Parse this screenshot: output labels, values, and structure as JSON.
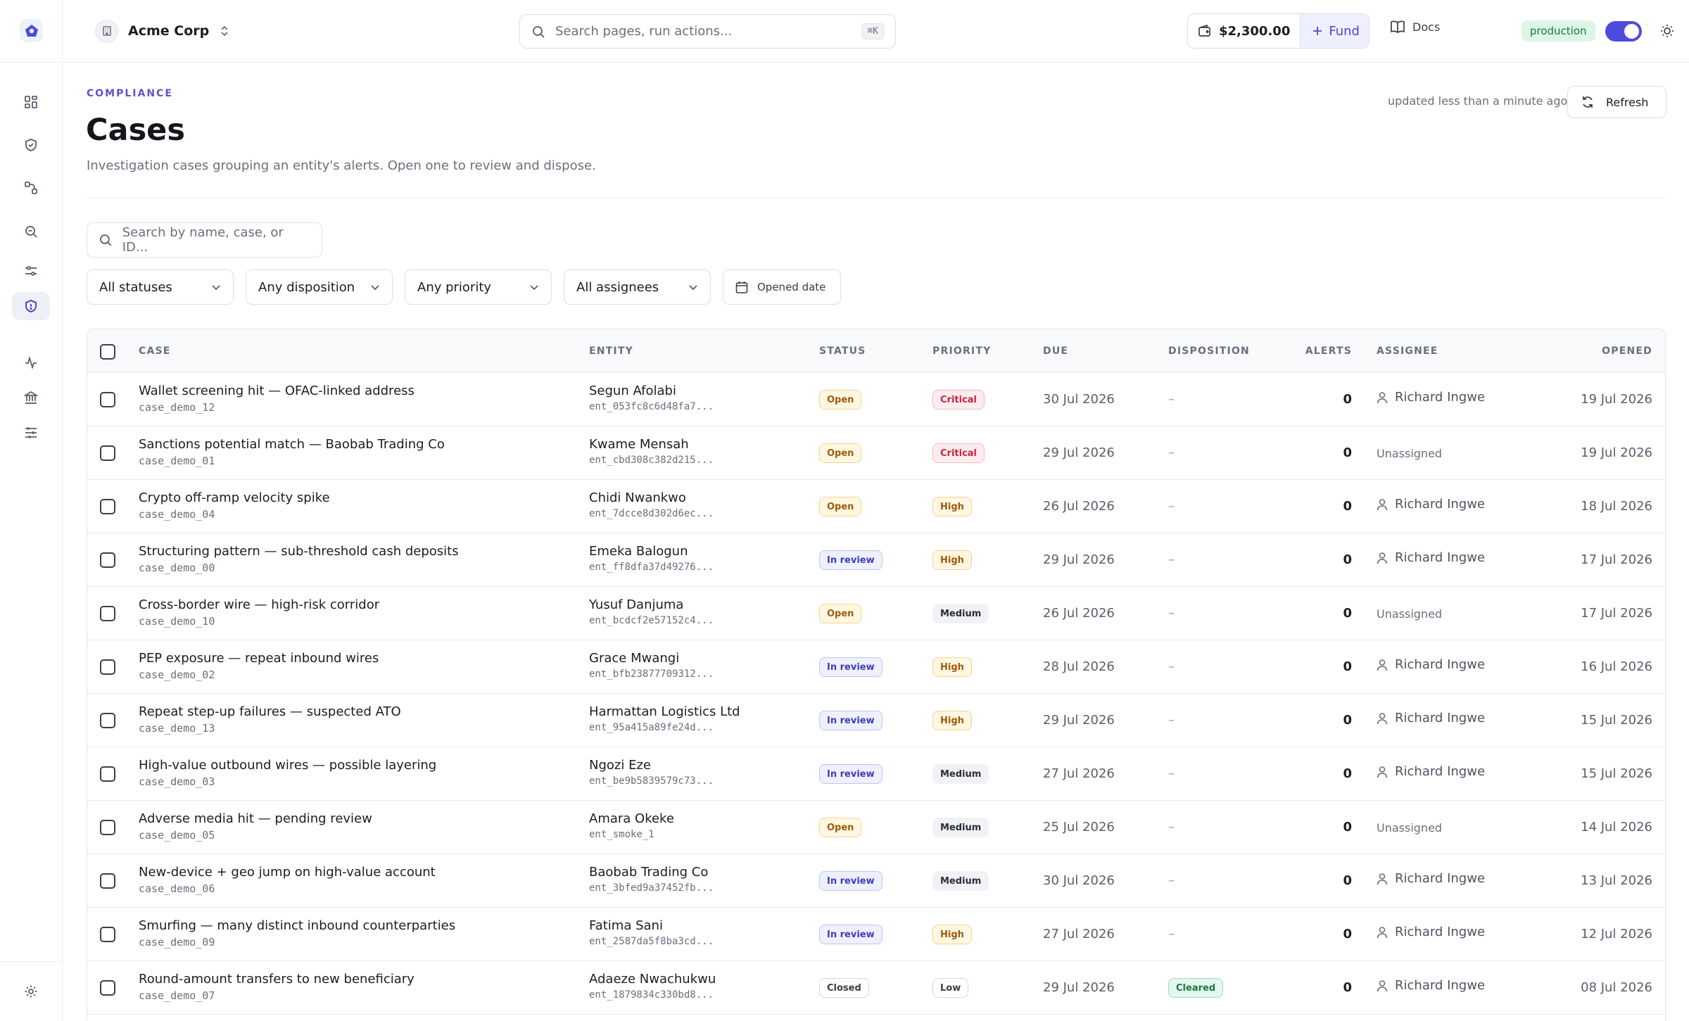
{
  "org": {
    "name": "Acme Corp"
  },
  "command": {
    "placeholder": "Search pages, run actions...",
    "shortcut": "⌘K"
  },
  "wallet": {
    "balance": "$2,300.00",
    "fund_label": "Fund"
  },
  "docs_label": "Docs",
  "environment": {
    "label": "production",
    "enabled": true
  },
  "colors": {
    "accent": "#4d4bdc",
    "env_bg": "#dcf5e6",
    "env_text": "#137a45"
  },
  "nav": {
    "items": [
      {
        "icon": "dashboard-icon"
      },
      {
        "icon": "shield-check-icon"
      },
      {
        "icon": "flow-icon"
      },
      {
        "icon": "search-investigate-icon"
      },
      {
        "icon": "rules-icon"
      },
      {
        "icon": "shield-cases-icon",
        "active": true
      },
      {
        "icon": "activity-icon"
      },
      {
        "icon": "bank-icon"
      },
      {
        "icon": "sliders-icon"
      }
    ],
    "footer_icon": "settings-icon"
  },
  "page": {
    "eyebrow": "COMPLIANCE",
    "title": "Cases",
    "subtitle": "Investigation cases grouping an entity's alerts. Open one to review and dispose.",
    "updated": "updated less than a minute ago",
    "refresh_label": "Refresh"
  },
  "filters": {
    "search_placeholder": "Search by name, case, or ID...",
    "status": "All statuses",
    "disposition": "Any disposition",
    "priority": "Any priority",
    "assignee": "All assignees",
    "date": "Opened date"
  },
  "table": {
    "headers": [
      "CASE",
      "ENTITY",
      "STATUS",
      "PRIORITY",
      "DUE",
      "DISPOSITION",
      "ALERTS",
      "ASSIGNEE",
      "OPENED"
    ],
    "rows": [
      {
        "title": "Wallet screening hit — OFAC-linked address",
        "case_id": "case_demo_12",
        "entity": "Segun Afolabi",
        "entity_id": "ent_053fc8c6d48fa7...",
        "status": "Open",
        "priority": "Critical",
        "due": "30 Jul 2026",
        "disposition": "–",
        "alerts": "0",
        "assignee": "Richard Ingwe",
        "opened": "19 Jul 2026"
      },
      {
        "title": "Sanctions potential match — Baobab Trading Co",
        "case_id": "case_demo_01",
        "entity": "Kwame Mensah",
        "entity_id": "ent_cbd308c382d215...",
        "status": "Open",
        "priority": "Critical",
        "due": "29 Jul 2026",
        "disposition": "–",
        "alerts": "0",
        "assignee": "Unassigned",
        "opened": "19 Jul 2026"
      },
      {
        "title": "Crypto off-ramp velocity spike",
        "case_id": "case_demo_04",
        "entity": "Chidi Nwankwo",
        "entity_id": "ent_7dcce8d302d6ec...",
        "status": "Open",
        "priority": "High",
        "due": "26 Jul 2026",
        "disposition": "–",
        "alerts": "0",
        "assignee": "Richard Ingwe",
        "opened": "18 Jul 2026"
      },
      {
        "title": "Structuring pattern — sub-threshold cash deposits",
        "case_id": "case_demo_00",
        "entity": "Emeka Balogun",
        "entity_id": "ent_ff8dfa37d49276...",
        "status": "In review",
        "priority": "High",
        "due": "29 Jul 2026",
        "disposition": "–",
        "alerts": "0",
        "assignee": "Richard Ingwe",
        "opened": "17 Jul 2026"
      },
      {
        "title": "Cross-border wire — high-risk corridor",
        "case_id": "case_demo_10",
        "entity": "Yusuf Danjuma",
        "entity_id": "ent_bcdcf2e57152c4...",
        "status": "Open",
        "priority": "Medium",
        "due": "26 Jul 2026",
        "disposition": "–",
        "alerts": "0",
        "assignee": "Unassigned",
        "opened": "17 Jul 2026"
      },
      {
        "title": "PEP exposure — repeat inbound wires",
        "case_id": "case_demo_02",
        "entity": "Grace Mwangi",
        "entity_id": "ent_bfb23877709312...",
        "status": "In review",
        "priority": "High",
        "due": "28 Jul 2026",
        "disposition": "–",
        "alerts": "0",
        "assignee": "Richard Ingwe",
        "opened": "16 Jul 2026"
      },
      {
        "title": "Repeat step-up failures — suspected ATO",
        "case_id": "case_demo_13",
        "entity": "Harmattan Logistics Ltd",
        "entity_id": "ent_95a415a89fe24d...",
        "status": "In review",
        "priority": "High",
        "due": "29 Jul 2026",
        "disposition": "–",
        "alerts": "0",
        "assignee": "Richard Ingwe",
        "opened": "15 Jul 2026"
      },
      {
        "title": "High-value outbound wires — possible layering",
        "case_id": "case_demo_03",
        "entity": "Ngozi Eze",
        "entity_id": "ent_be9b5839579c73...",
        "status": "In review",
        "priority": "Medium",
        "due": "27 Jul 2026",
        "disposition": "–",
        "alerts": "0",
        "assignee": "Richard Ingwe",
        "opened": "15 Jul 2026"
      },
      {
        "title": "Adverse media hit — pending review",
        "case_id": "case_demo_05",
        "entity": "Amara Okeke",
        "entity_id": "ent_smoke_1",
        "status": "Open",
        "priority": "Medium",
        "due": "25 Jul 2026",
        "disposition": "–",
        "alerts": "0",
        "assignee": "Unassigned",
        "opened": "14 Jul 2026"
      },
      {
        "title": "New-device + geo jump on high-value account",
        "case_id": "case_demo_06",
        "entity": "Baobab Trading Co",
        "entity_id": "ent_3bfed9a37452fb...",
        "status": "In review",
        "priority": "Medium",
        "due": "30 Jul 2026",
        "disposition": "–",
        "alerts": "0",
        "assignee": "Richard Ingwe",
        "opened": "13 Jul 2026"
      },
      {
        "title": "Smurfing — many distinct inbound counterparties",
        "case_id": "case_demo_09",
        "entity": "Fatima Sani",
        "entity_id": "ent_2587da5f8ba3cd...",
        "status": "In review",
        "priority": "High",
        "due": "27 Jul 2026",
        "disposition": "–",
        "alerts": "0",
        "assignee": "Richard Ingwe",
        "opened": "12 Jul 2026"
      },
      {
        "title": "Round-amount transfers to new beneficiary",
        "case_id": "case_demo_07",
        "entity": "Adaeze Nwachukwu",
        "entity_id": "ent_1879834c330bd8...",
        "status": "Closed",
        "priority": "Low",
        "due": "29 Jul 2026",
        "disposition": "Cleared",
        "alerts": "0",
        "assignee": "Richard Ingwe",
        "opened": "08 Jul 2026"
      }
    ]
  }
}
